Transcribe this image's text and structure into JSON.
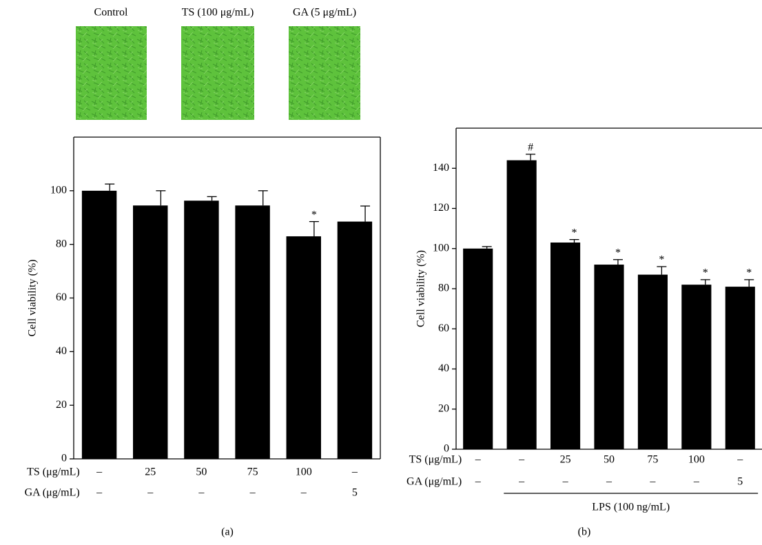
{
  "micrographs": [
    "Control",
    "TS (100 μg/mL)",
    "GA (5 μg/mL)"
  ],
  "chart_data": [
    {
      "type": "bar",
      "panel": "(a)",
      "ylabel": "Cell viability (%)",
      "ylim": [
        0,
        120
      ],
      "yticks": [
        0,
        20,
        40,
        60,
        80,
        100
      ],
      "color": "#000000",
      "values": [
        100,
        94.5,
        96.3,
        94.5,
        83,
        88.5
      ],
      "errors": [
        2.5,
        5.5,
        1.5,
        5.5,
        5.5,
        5.8
      ],
      "markers": [
        null,
        null,
        null,
        null,
        "*",
        null
      ],
      "conditions": [
        {
          "label": "TS (μg/mL)",
          "values": [
            "–",
            "25",
            "50",
            "75",
            "100",
            "–"
          ]
        },
        {
          "label": "GA (μg/mL)",
          "values": [
            "–",
            "–",
            "–",
            "–",
            "–",
            "5"
          ]
        }
      ]
    },
    {
      "type": "bar",
      "panel": "(b)",
      "ylabel": "Cell viability (%)",
      "ylim": [
        0,
        160
      ],
      "yticks": [
        0,
        20,
        40,
        60,
        80,
        100,
        120,
        140
      ],
      "color": "#000000",
      "values": [
        100,
        144,
        103,
        92,
        87,
        82,
        81
      ],
      "errors": [
        1,
        3,
        1.5,
        2.5,
        4,
        2.5,
        3.5
      ],
      "markers": [
        null,
        "#",
        "*",
        "*",
        "*",
        "*",
        "*"
      ],
      "conditions": [
        {
          "label": "TS (μg/mL)",
          "values": [
            "–",
            "–",
            "25",
            "50",
            "75",
            "100",
            "–"
          ]
        },
        {
          "label": "GA (μg/mL)",
          "values": [
            "–",
            "–",
            "–",
            "–",
            "–",
            "–",
            "5"
          ]
        }
      ],
      "group_label": "LPS (100 ng/mL)"
    }
  ]
}
